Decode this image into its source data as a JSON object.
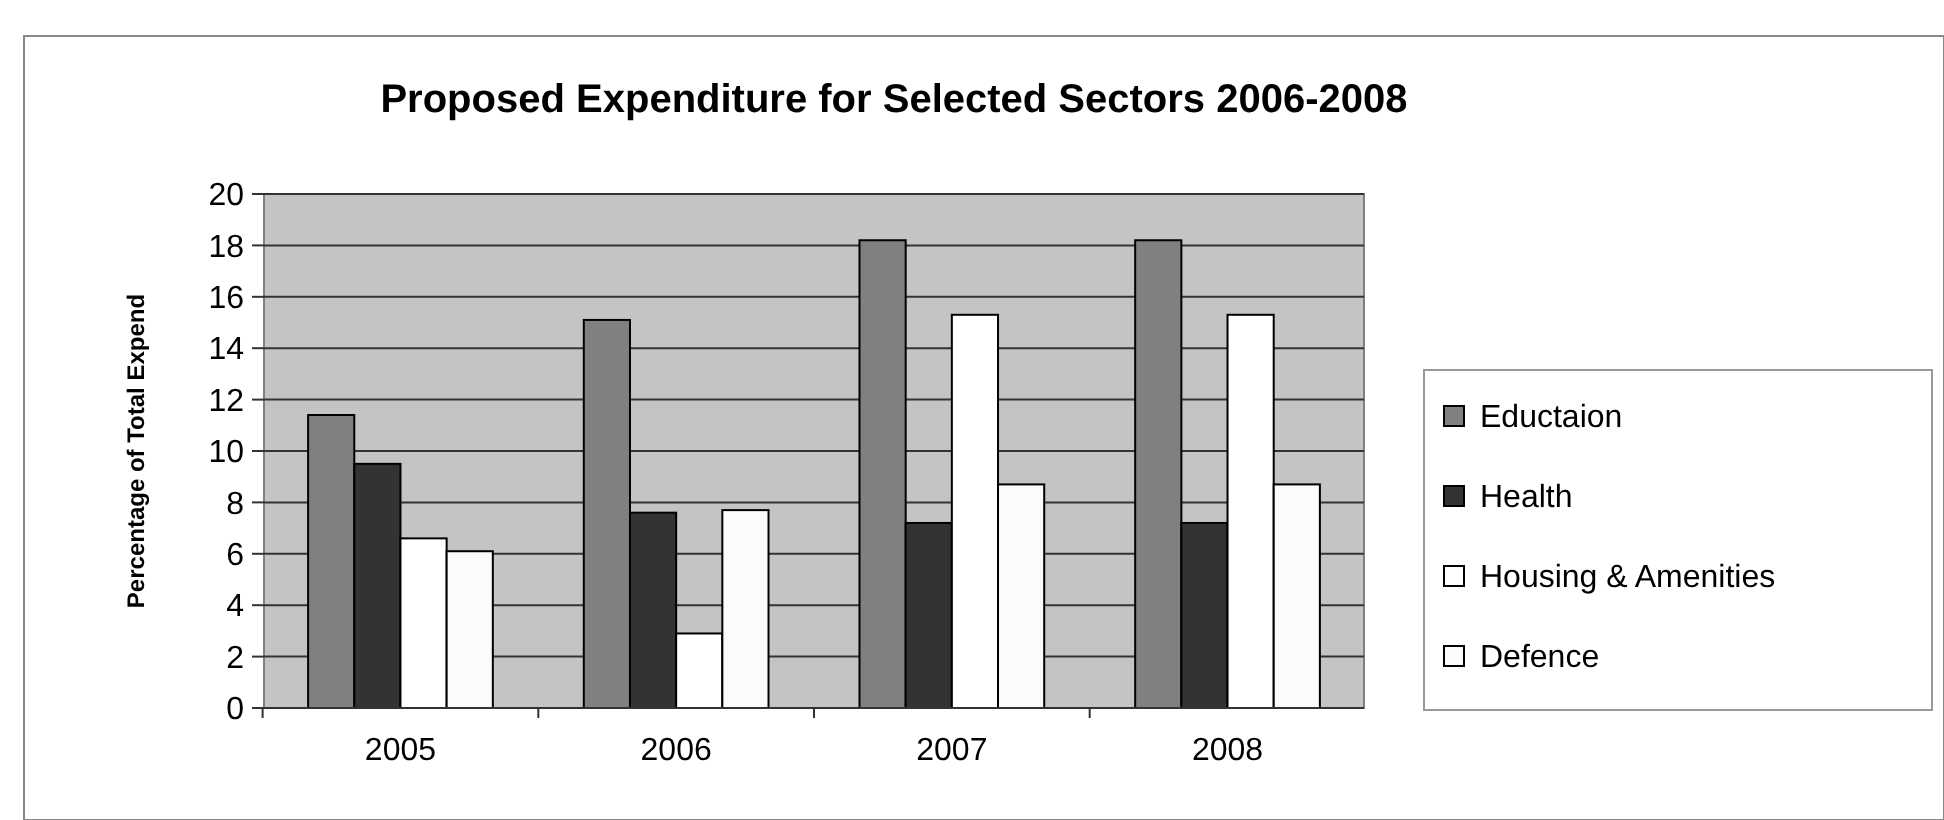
{
  "chart_data": {
    "type": "bar",
    "title": "Proposed Expenditure for Selected Sectors 2006-2008",
    "ylabel": "Percentage of Total Expend",
    "categories": [
      "2005",
      "2006",
      "2007",
      "2008"
    ],
    "series": [
      {
        "name": "Eductaion",
        "color": "#808080",
        "values": [
          11.4,
          15.1,
          18.2,
          18.2
        ]
      },
      {
        "name": "Health",
        "color": "#333333",
        "values": [
          9.5,
          7.6,
          7.2,
          7.2
        ]
      },
      {
        "name": "Housing & Amenities",
        "color": "#ffffff",
        "values": [
          6.6,
          2.9,
          15.3,
          15.3
        ]
      },
      {
        "name": "Defence",
        "color": "#fbfbfb",
        "values": [
          6.1,
          7.7,
          8.7,
          8.7
        ]
      }
    ],
    "ylim": [
      0,
      20
    ],
    "yticks": [
      0,
      2,
      4,
      6,
      8,
      10,
      12,
      14,
      16,
      18,
      20
    ],
    "grid": "y",
    "legend": "right"
  }
}
